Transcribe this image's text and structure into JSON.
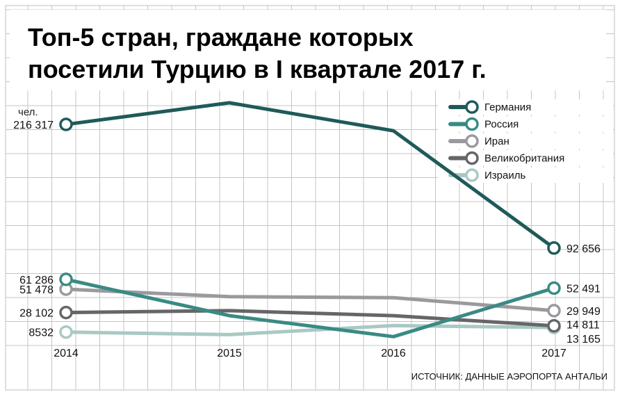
{
  "chart_data": {
    "type": "line",
    "title_line1": "Топ-5 стран, граждане которых",
    "title_line2": "посетили Турцию в I квартале 2017 г.",
    "ylabel": "чел.",
    "source": "ИСТОЧНИК: ДАННЫЕ АЭРОПОРТА АНТАЛЬИ",
    "x": [
      "2014",
      "2015",
      "2016",
      "2017"
    ],
    "ylim": [
      0,
      240000
    ],
    "grid": true,
    "legend_position": "top-right",
    "series": [
      {
        "name": "Германия",
        "color": "#1f5a5a",
        "values": [
          216317,
          238000,
          210000,
          92656
        ],
        "start_label": "216 317",
        "end_label": "92 656",
        "end_label_offset": 0
      },
      {
        "name": "Россия",
        "color": "#3a8a84",
        "values": [
          61286,
          25000,
          4000,
          52491
        ],
        "start_label": "61 286",
        "end_label": "52 491",
        "end_label_offset": 0
      },
      {
        "name": "Иран",
        "color": "#9a9a9e",
        "values": [
          51478,
          44000,
          43000,
          29949
        ],
        "start_label": "51 478",
        "end_label": "29 949",
        "end_label_offset": 0
      },
      {
        "name": "Великобритания",
        "color": "#666668",
        "values": [
          28102,
          30000,
          25000,
          14811
        ],
        "start_label": "28 102",
        "end_label": "14 811",
        "end_label_offset": -2
      },
      {
        "name": "Израиль",
        "color": "#a9c9c3",
        "values": [
          8532,
          6000,
          15000,
          13165
        ],
        "start_label": "8532",
        "end_label": "13 165",
        "end_label_offset": 16
      }
    ]
  }
}
